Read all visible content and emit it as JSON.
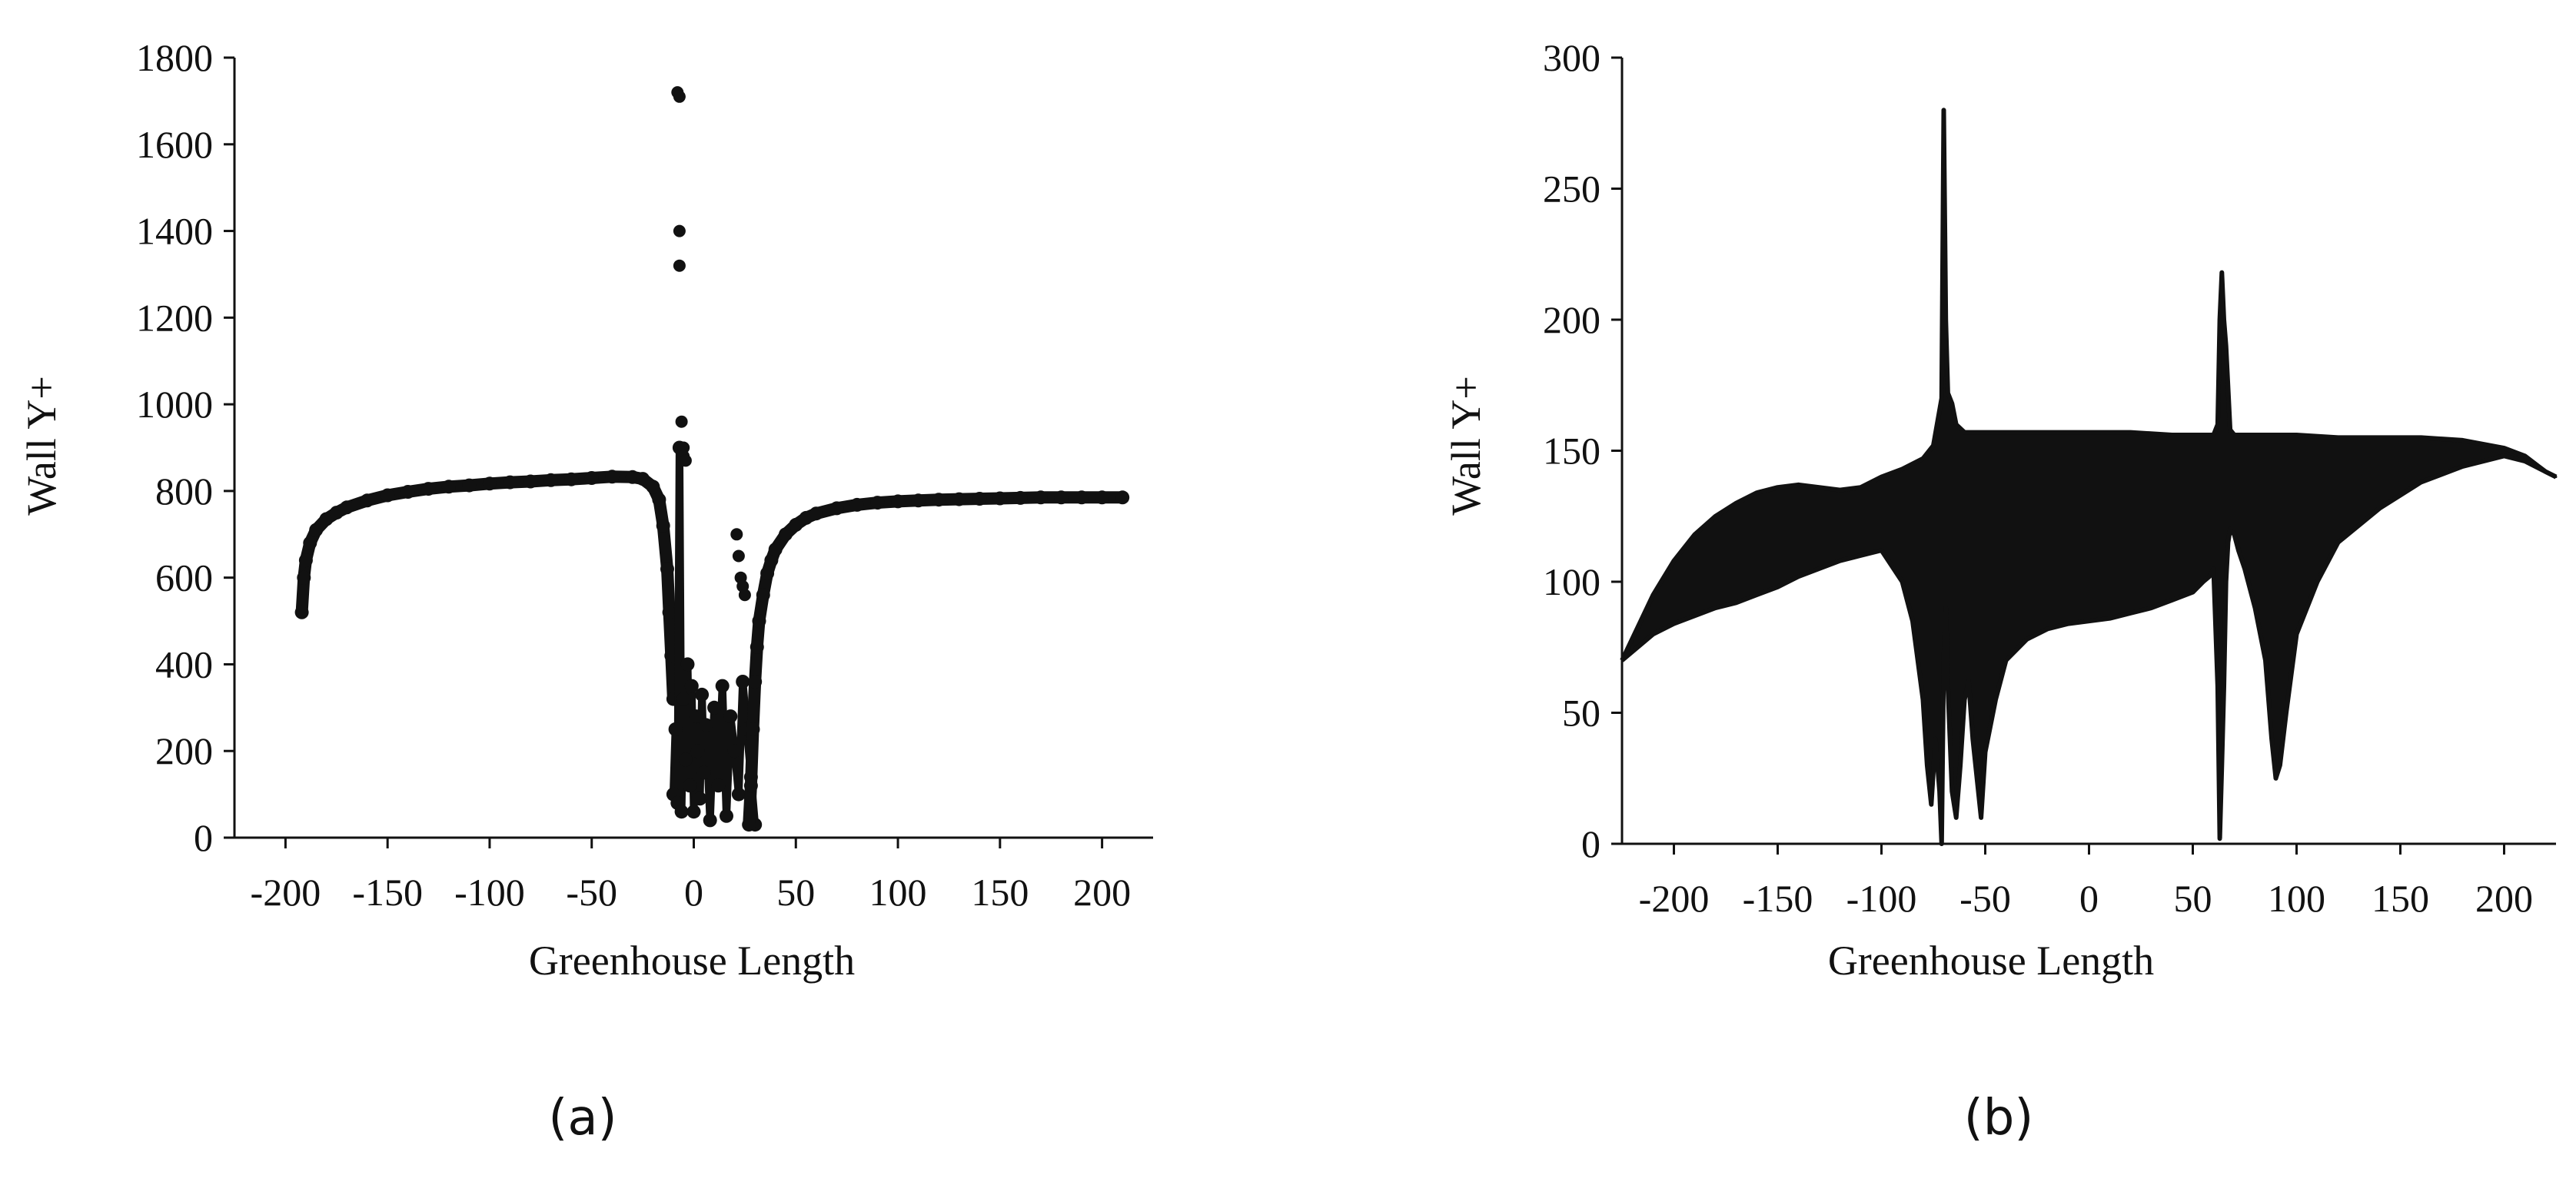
{
  "figure": {
    "caption_a": "(a)",
    "caption_b": "(b)"
  },
  "chart_data": [
    {
      "id": "a",
      "type": "scatter",
      "xlabel": "Greenhouse Length",
      "ylabel": "Wall Y+",
      "xlim": [
        -225,
        225
      ],
      "ylim": [
        0,
        1800
      ],
      "xticks": [
        -200,
        -150,
        -100,
        -50,
        0,
        50,
        100,
        150,
        200
      ],
      "yticks": [
        0,
        200,
        400,
        600,
        800,
        1000,
        1200,
        1400,
        1600,
        1800
      ],
      "grid": false,
      "color": "#111111",
      "series": [
        {
          "x": [
            -192,
            -191,
            -190,
            -188,
            -185,
            -180,
            -175,
            -170,
            -160,
            -150,
            -140,
            -130,
            -120,
            -110,
            -100,
            -90,
            -80,
            -70,
            -60,
            -50,
            -40,
            -30,
            -25,
            -20,
            -17,
            -15,
            -13,
            -12,
            -11,
            -10
          ],
          "values": [
            520,
            600,
            640,
            680,
            710,
            735,
            750,
            762,
            778,
            790,
            798,
            805,
            810,
            813,
            817,
            820,
            822,
            825,
            827,
            830,
            833,
            832,
            828,
            810,
            780,
            720,
            620,
            520,
            420,
            320
          ]
        },
        {
          "x": [
            -10,
            -9,
            -8,
            -7,
            -6,
            -5,
            -4,
            -3,
            -2,
            -1,
            0,
            1,
            2,
            3,
            4,
            5,
            6,
            8,
            10,
            12,
            14,
            16,
            18,
            20,
            22,
            24,
            26,
            28,
            30
          ],
          "values": [
            100,
            250,
            80,
            900,
            60,
            320,
            180,
            400,
            120,
            350,
            60,
            280,
            200,
            90,
            330,
            150,
            260,
            40,
            300,
            120,
            350,
            50,
            280,
            200,
            100,
            360,
            250,
            140,
            30
          ]
        },
        {
          "x": [
            -8,
            -7,
            -7,
            -7,
            -6,
            -5,
            -5,
            -4,
            21,
            22,
            23,
            24,
            25
          ],
          "values": [
            1720,
            1710,
            1400,
            1320,
            960,
            900,
            880,
            870,
            700,
            650,
            600,
            580,
            560
          ]
        },
        {
          "x": [
            27,
            28,
            29,
            30,
            31,
            32,
            34,
            36,
            38,
            40,
            45,
            50,
            55,
            60,
            70,
            80,
            90,
            100,
            110,
            120,
            130,
            140,
            150,
            160,
            170,
            180,
            190,
            200,
            210
          ],
          "values": [
            30,
            120,
            250,
            360,
            440,
            500,
            560,
            610,
            640,
            665,
            700,
            722,
            738,
            748,
            760,
            768,
            773,
            776,
            778,
            780,
            781,
            782,
            783,
            784,
            785,
            785,
            785,
            785,
            785
          ]
        }
      ]
    },
    {
      "id": "b",
      "type": "area",
      "xlabel": "Greenhouse Length",
      "ylabel": "Wall Y+",
      "xlim": [
        -225,
        225
      ],
      "ylim": [
        0,
        300
      ],
      "xticks": [
        -200,
        -150,
        -100,
        -50,
        0,
        50,
        100,
        150,
        200
      ],
      "yticks": [
        0,
        50,
        100,
        150,
        200,
        250,
        300
      ],
      "grid": false,
      "color": "#111111",
      "upper": {
        "x": [
          -225,
          -210,
          -200,
          -190,
          -180,
          -170,
          -160,
          -150,
          -140,
          -130,
          -120,
          -110,
          -100,
          -90,
          -80,
          -75,
          -71,
          -70,
          -69,
          -68,
          -66,
          -64,
          -60,
          -50,
          -40,
          -20,
          0,
          20,
          40,
          60,
          62,
          63,
          64,
          65,
          66,
          68,
          70,
          80,
          90,
          100,
          120,
          140,
          160,
          180,
          200,
          210,
          220,
          225
        ],
        "values": [
          70,
          95,
          108,
          118,
          125,
          130,
          134,
          136,
          137,
          136,
          135,
          136,
          140,
          143,
          147,
          152,
          170,
          280,
          200,
          172,
          168,
          160,
          157,
          157,
          157,
          157,
          157,
          157,
          156,
          156,
          160,
          200,
          218,
          200,
          190,
          158,
          156,
          156,
          156,
          156,
          155,
          155,
          155,
          154,
          151,
          148,
          142,
          140
        ]
      },
      "lower": {
        "x": [
          -225,
          -210,
          -200,
          -190,
          -180,
          -170,
          -160,
          -150,
          -140,
          -130,
          -120,
          -110,
          -100,
          -90,
          -85,
          -80,
          -78,
          -76,
          -74,
          -72,
          -71,
          -70,
          -69,
          -68,
          -66,
          -64,
          -62,
          -60,
          -58,
          -56,
          -54,
          -52,
          -50,
          -45,
          -40,
          -30,
          -20,
          -10,
          0,
          10,
          20,
          30,
          40,
          50,
          55,
          58,
          60,
          62,
          63,
          64,
          65,
          66,
          67,
          68,
          70,
          72,
          75,
          80,
          85,
          88,
          90,
          92,
          95,
          100,
          110,
          120,
          140,
          160,
          180,
          200,
          210,
          220,
          225
        ],
        "values": [
          70,
          80,
          84,
          87,
          90,
          92,
          95,
          98,
          102,
          105,
          108,
          110,
          112,
          100,
          85,
          55,
          30,
          15,
          40,
          20,
          0,
          70,
          90,
          60,
          20,
          10,
          30,
          55,
          62,
          40,
          25,
          10,
          35,
          55,
          70,
          78,
          82,
          84,
          85,
          86,
          88,
          90,
          93,
          96,
          100,
          102,
          105,
          60,
          2,
          30,
          60,
          100,
          115,
          120,
          118,
          112,
          105,
          90,
          70,
          40,
          25,
          30,
          50,
          80,
          100,
          115,
          128,
          138,
          144,
          148,
          146,
          142,
          140
        ]
      }
    }
  ]
}
